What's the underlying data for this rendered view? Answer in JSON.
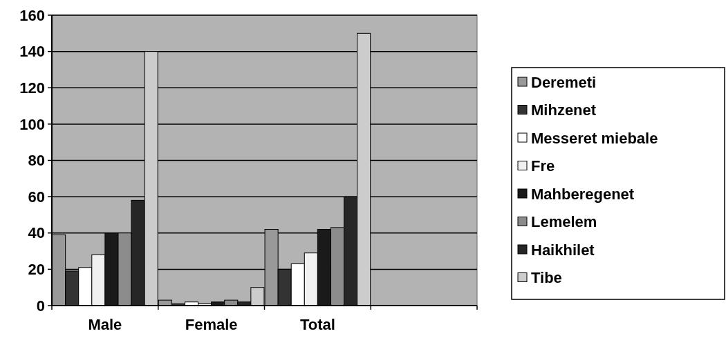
{
  "chart_data": {
    "type": "bar",
    "categories": [
      "Male",
      "Female",
      "Total"
    ],
    "series": [
      {
        "name": "Deremeti",
        "color": "#999999",
        "values": [
          39,
          3,
          42
        ]
      },
      {
        "name": "Mihzenet",
        "color": "#333333",
        "values": [
          19,
          1,
          20
        ]
      },
      {
        "name": "Messeret miebale",
        "color": "#ffffff",
        "values": [
          21,
          2,
          23
        ]
      },
      {
        "name": "Fre",
        "color": "#f0f0f0",
        "values": [
          28,
          1,
          29
        ]
      },
      {
        "name": "Mahberegenet",
        "color": "#1a1a1a",
        "values": [
          40,
          2,
          42
        ]
      },
      {
        "name": "Lemelem",
        "color": "#8c8c8c",
        "values": [
          40,
          3,
          43
        ]
      },
      {
        "name": "Haikhilet",
        "color": "#262626",
        "values": [
          58,
          2,
          60
        ]
      },
      {
        "name": "Tibe",
        "color": "#cccccc",
        "values": [
          140,
          10,
          150
        ]
      }
    ],
    "ylim": [
      0,
      160
    ],
    "yticks": [
      0,
      20,
      40,
      60,
      80,
      100,
      120,
      140,
      160
    ],
    "grid": "y",
    "legend": "right"
  }
}
